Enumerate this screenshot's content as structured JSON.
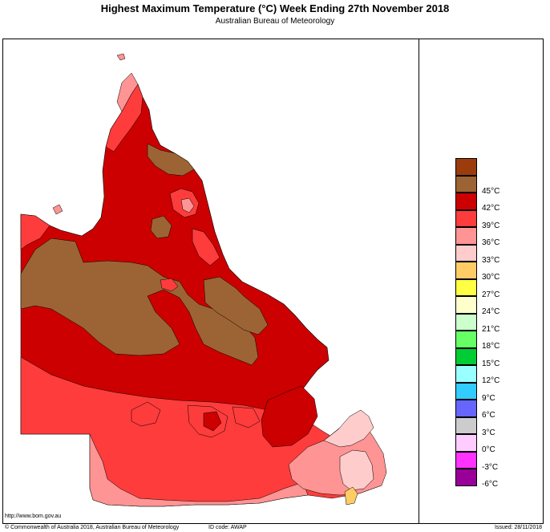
{
  "header": {
    "title": "Highest Maximum Temperature (°C)   Week Ending 27th November 2018",
    "subtitle": "Australian Bureau of Meteorology"
  },
  "legend": [
    {
      "label": "",
      "color": "#9c3c0c"
    },
    {
      "label": "45°C",
      "color": "#9c6434"
    },
    {
      "label": "42°C",
      "color": "#cc0000"
    },
    {
      "label": "39°C",
      "color": "#ff3c3c"
    },
    {
      "label": "36°C",
      "color": "#ff9494"
    },
    {
      "label": "33°C",
      "color": "#ffcccc"
    },
    {
      "label": "30°C",
      "color": "#ffcc66"
    },
    {
      "label": "27°C",
      "color": "#ffff44"
    },
    {
      "label": "24°C",
      "color": "#ffffcc"
    },
    {
      "label": "21°C",
      "color": "#ccffcc"
    },
    {
      "label": "18°C",
      "color": "#66ff66"
    },
    {
      "label": "15°C",
      "color": "#00cc33"
    },
    {
      "label": "12°C",
      "color": "#99ffff"
    },
    {
      "label": "9°C",
      "color": "#33ccff"
    },
    {
      "label": "6°C",
      "color": "#6666ff"
    },
    {
      "label": "3°C",
      "color": "#cccccc"
    },
    {
      "label": "0°C",
      "color": "#ffccff"
    },
    {
      "label": "-3°C",
      "color": "#ff33ff"
    },
    {
      "label": "-6°C",
      "color": "#990099"
    }
  ],
  "footer": {
    "url": "http://www.bom.gov.au",
    "copyright": "© Commonwealth of Australia 2018, Australian Bureau of Meteorology",
    "id_code": "ID code: AWAP",
    "issued": "Issued: 28/11/2018"
  }
}
